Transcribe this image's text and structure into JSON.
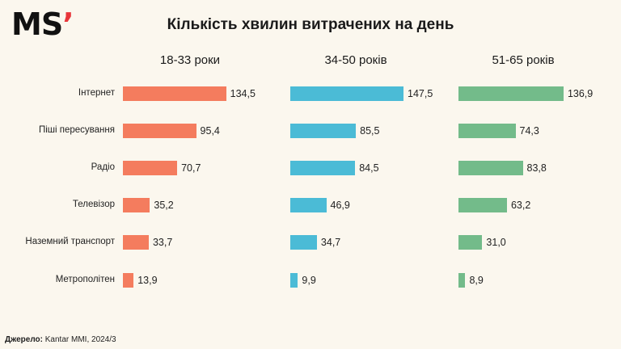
{
  "header": {
    "logo_text": "MS",
    "logo_mark": "’",
    "title": "Кількість хвилин витрачених на день"
  },
  "footer": {
    "source_label": "Джерело:",
    "source_text": "Kantar MMI, 2024/3"
  },
  "chart_data": {
    "type": "bar",
    "orientation": "horizontal",
    "title": "Кількість хвилин витрачених на день",
    "categories": [
      "Інтернет",
      "Піші пересування",
      "Радіо",
      "Телевізор",
      "Наземний транспорт",
      "Метрополітен"
    ],
    "series": [
      {
        "name": "18-33 роки",
        "color": "#f47c5e",
        "values": [
          134.5,
          95.4,
          70.7,
          35.2,
          33.7,
          13.9
        ],
        "labels": [
          "134,5",
          "95,4",
          "70,7",
          "35,2",
          "33,7",
          "13,9"
        ]
      },
      {
        "name": "34-50 років",
        "color": "#4bbbd6",
        "values": [
          147.5,
          85.5,
          84.5,
          46.9,
          34.7,
          9.9
        ],
        "labels": [
          "147,5",
          "85,5",
          "84,5",
          "46,9",
          "34,7",
          "9,9"
        ]
      },
      {
        "name": "51-65 років",
        "color": "#73bb8a",
        "values": [
          136.9,
          74.3,
          83.8,
          63.2,
          31.0,
          8.9
        ],
        "labels": [
          "136,9",
          "74,3",
          "83,8",
          "63,2",
          "31,0",
          "8,9"
        ]
      }
    ],
    "xlim": [
      0,
      147.5
    ],
    "grid": false,
    "legend": "none"
  }
}
